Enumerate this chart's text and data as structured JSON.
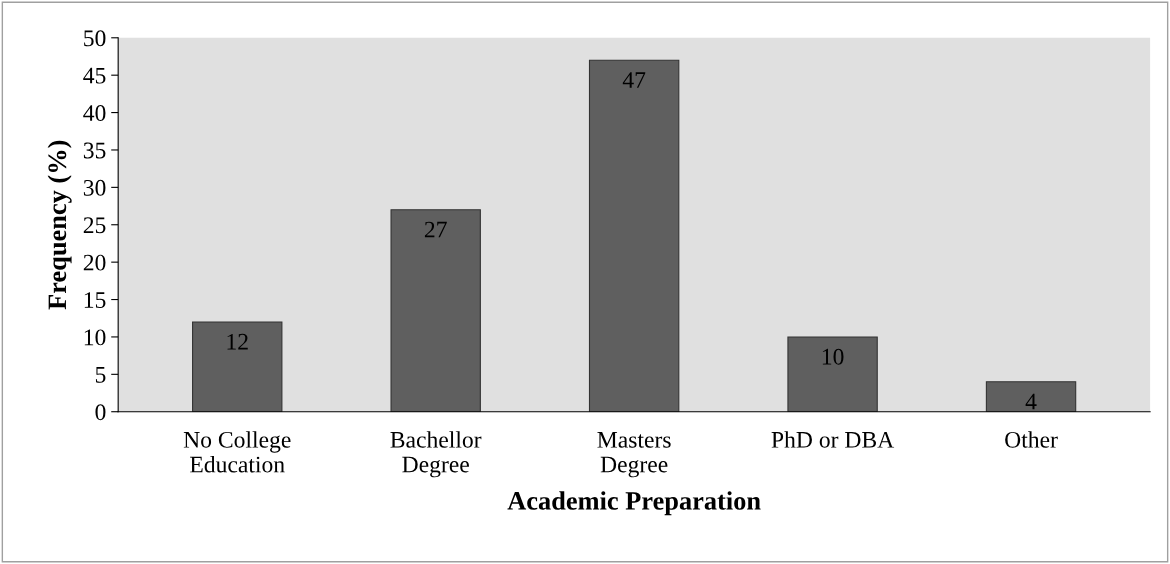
{
  "chart_data": {
    "type": "bar",
    "xlabel": "Academic Preparation",
    "ylabel": "Frequency (%)",
    "categories": [
      "No College\nEducation",
      "Bachellor\nDegree",
      "Masters\nDegree",
      "PhD or DBA",
      "Other"
    ],
    "values": [
      12,
      27,
      47,
      10,
      4
    ],
    "color": "#5f5f5f",
    "ylim": [
      0,
      50
    ],
    "yticks": [
      0,
      5,
      10,
      15,
      20,
      25,
      30,
      35,
      40,
      45,
      50
    ],
    "grid": false,
    "data_labels": true
  }
}
